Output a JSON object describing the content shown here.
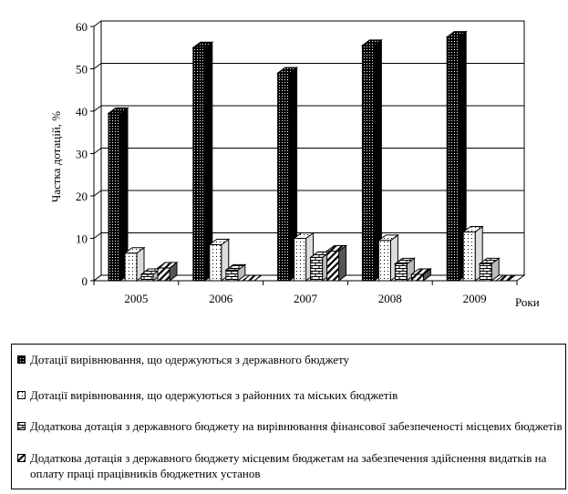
{
  "chart_data": {
    "type": "bar",
    "title": "",
    "xlabel": "Роки",
    "ylabel": "Частка дотацій, %",
    "ylim": [
      0,
      60
    ],
    "yticks": [
      0,
      10,
      20,
      30,
      40,
      50,
      60
    ],
    "categories": [
      "2005",
      "2006",
      "2007",
      "2008",
      "2009"
    ],
    "grid": true,
    "legend_position": "bottom",
    "series": [
      {
        "name": "Дотації вирівнювання, що одержуються з державного бюджету",
        "pattern": "dots-dense",
        "values": [
          39.5,
          55,
          49,
          55.5,
          57.5
        ]
      },
      {
        "name": "Дотації вирівнювання, що одержуються з районних та міських бюджетів",
        "pattern": "dots-sparse",
        "values": [
          6.5,
          8.5,
          10,
          9.5,
          11.5
        ]
      },
      {
        "name": "Додаткова дотація з державного бюджету на вирівнювання фінансової забезпеченості місцевих бюджетів",
        "pattern": "bricks",
        "values": [
          1.5,
          2.5,
          5.5,
          4,
          4
        ]
      },
      {
        "name": "Додаткова дотація з державного бюджету місцевим бюджетам на забезпечення здійснення видатків на оплату праці працівників бюджетних установ",
        "pattern": "diagonal",
        "values": [
          3,
          0,
          7,
          1.5,
          0
        ]
      }
    ]
  }
}
